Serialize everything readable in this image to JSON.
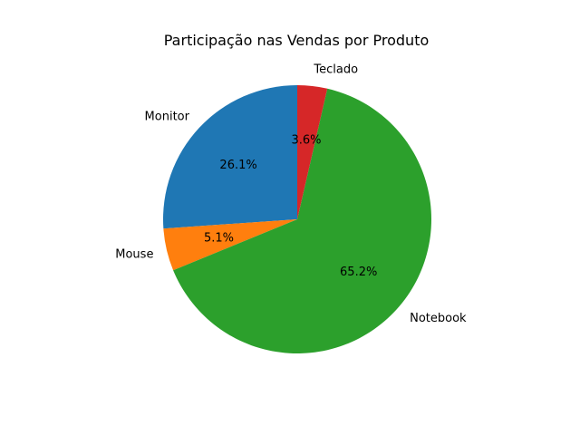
{
  "chart_data": {
    "type": "pie",
    "title": "Participação nas Vendas por Produto",
    "categories": [
      "Monitor",
      "Mouse",
      "Notebook",
      "Teclado"
    ],
    "values": [
      26.1,
      5.1,
      65.2,
      3.6
    ],
    "value_labels": [
      "26.1%",
      "5.1%",
      "65.2%",
      "3.6%"
    ],
    "colors": [
      "#1f77b4",
      "#ff7f0e",
      "#2ca02c",
      "#d62728"
    ],
    "start_angle_deg": 90,
    "direction": "counterclockwise",
    "legend": "none"
  }
}
